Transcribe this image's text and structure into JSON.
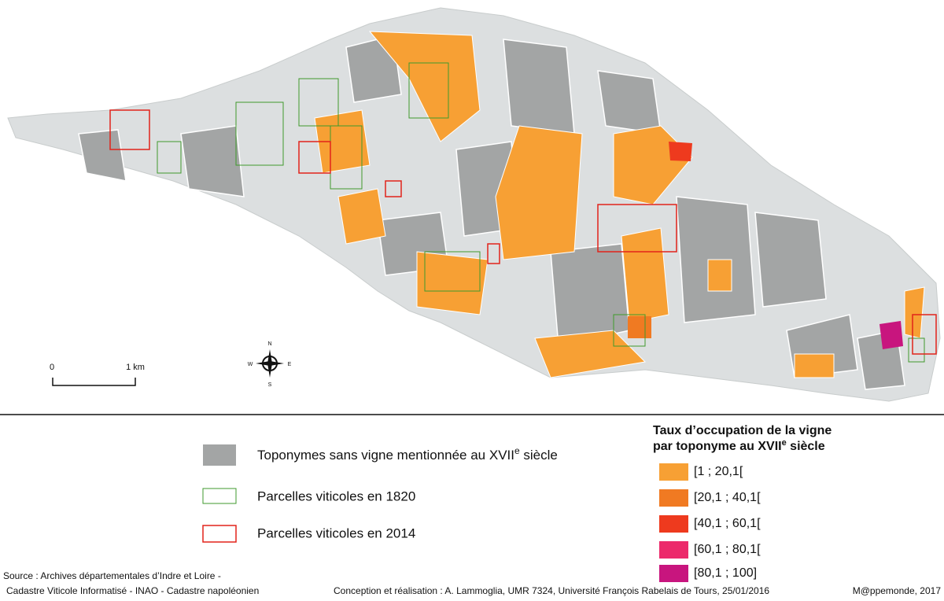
{
  "scale": {
    "start": "0",
    "end": "1 km"
  },
  "compass": {
    "n": "N",
    "s": "S",
    "e": "E",
    "w": "W"
  },
  "legend": {
    "gray": [
      "Toponymes sans vigne mentionnée au XVII",
      "e",
      " siècle"
    ],
    "green": "Parcelles viticoles en 1820",
    "red": "Parcelles viticoles en 2014"
  },
  "classes": {
    "title": [
      "Taux d’occupation de la vigne",
      "par toponyme au XVII",
      "e",
      " siècle"
    ],
    "items": [
      "[1 ; 20,1[",
      "[20,1 ; 40,1[",
      "[40,1 ; 60,1[",
      "[60,1 ; 80,1[",
      "[80,1 ; 100]"
    ]
  },
  "footer": {
    "source1": "Source : Archives départementales d’Indre et Loire -",
    "source2": "Cadastre Viticole Informatisé - INAO - Cadastre napoléonien",
    "credit": "Conception et réalisation : A. Lammoglia, UMR 7324, Université François Rabelais de Tours, 25/01/2016",
    "publisher": "M@ppemonde, 2017"
  }
}
